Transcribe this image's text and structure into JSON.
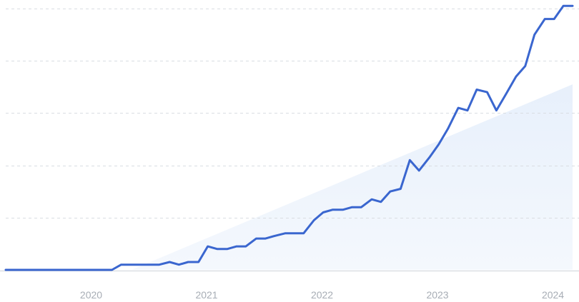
{
  "chart_data": {
    "type": "line",
    "title": "",
    "xlabel": "",
    "ylabel": "",
    "grid": true,
    "legend": "none",
    "x_ticks": [
      {
        "label": "2020",
        "value": 2020.0
      },
      {
        "label": "2021",
        "value": 2021.0
      },
      {
        "label": "2022",
        "value": 2022.0
      },
      {
        "label": "2023",
        "value": 2023.0
      },
      {
        "label": "2024",
        "value": 2024.0
      }
    ],
    "xlim": [
      2019.26,
      2024.17
    ],
    "ylim": [
      0,
      100
    ],
    "y_gridlines": [
      20,
      40,
      60,
      80,
      100
    ],
    "series": [
      {
        "color": "#3a66cf",
        "x": [
          2019.26,
          2019.34,
          2019.43,
          2019.51,
          2019.59,
          2019.68,
          2019.76,
          2019.84,
          2019.93,
          2020.01,
          2020.09,
          2020.18,
          2020.26,
          2020.34,
          2020.43,
          2020.51,
          2020.59,
          2020.68,
          2020.76,
          2020.84,
          2020.93,
          2021.01,
          2021.09,
          2021.18,
          2021.26,
          2021.34,
          2021.43,
          2021.51,
          2021.59,
          2021.68,
          2021.76,
          2021.84,
          2021.93,
          2022.01,
          2022.09,
          2022.18,
          2022.26,
          2022.34,
          2022.43,
          2022.51,
          2022.59,
          2022.68,
          2022.76,
          2022.84,
          2022.93,
          2023.01,
          2023.09,
          2023.18,
          2023.26,
          2023.34,
          2023.43,
          2023.51,
          2023.59,
          2023.68,
          2023.76,
          2023.84,
          2023.93,
          2024.01,
          2024.09,
          2024.17
        ],
        "values": [
          0,
          0,
          0,
          0,
          0,
          0,
          0,
          0,
          0,
          0,
          0,
          0,
          2,
          2,
          2,
          2,
          2,
          3,
          2,
          3,
          3,
          9,
          8,
          8,
          9,
          9,
          12,
          12,
          13,
          14,
          14,
          14,
          19,
          22,
          23,
          23,
          24,
          24,
          27,
          26,
          30,
          31,
          42,
          38,
          43,
          48,
          54,
          62,
          61,
          69,
          68,
          61,
          67,
          74,
          78,
          90,
          96,
          96,
          101,
          101
        ]
      }
    ]
  },
  "ytd_band": {
    "color": "#dfeaf8",
    "x_start": 2020.35,
    "x_end": 2024.17,
    "y_start": 0,
    "y_end": 71
  }
}
